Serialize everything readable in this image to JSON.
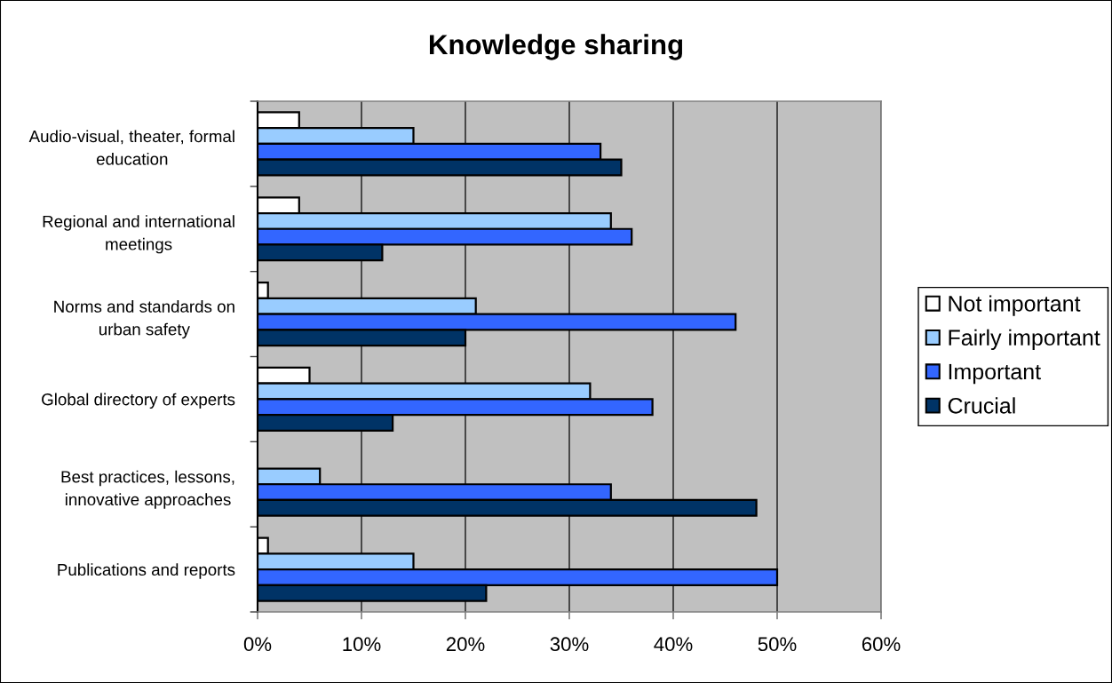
{
  "chart_data": {
    "type": "bar",
    "orientation": "horizontal",
    "title": "Knowledge sharing",
    "categories": [
      "Audio-visual, theater, formal\neducation",
      "Regional and international\nmeetings",
      "Norms and standards on\nurban safety",
      "Global directory of experts",
      "Best practices, lessons,\ninnovative approaches",
      "Publications and reports"
    ],
    "series": [
      {
        "name": "Not important",
        "color": "#ffffff",
        "values": [
          4,
          4,
          1,
          5,
          null,
          1
        ]
      },
      {
        "name": "Fairly important",
        "color": "#99ccff",
        "values": [
          15,
          34,
          21,
          32,
          6,
          15
        ]
      },
      {
        "name": "Important",
        "color": "#3366ff",
        "values": [
          33,
          36,
          46,
          38,
          34,
          50
        ]
      },
      {
        "name": "Crucial",
        "color": "#003366",
        "values": [
          35,
          12,
          20,
          13,
          48,
          22
        ]
      }
    ],
    "xlim": [
      0,
      60
    ],
    "xticks": [
      {
        "value": 0,
        "label": "0%"
      },
      {
        "value": 10,
        "label": "10%"
      },
      {
        "value": 20,
        "label": "20%"
      },
      {
        "value": 30,
        "label": "30%"
      },
      {
        "value": 40,
        "label": "40%"
      },
      {
        "value": 50,
        "label": "50%"
      },
      {
        "value": 60,
        "label": "60%"
      }
    ],
    "grid": "x",
    "legend": "right"
  }
}
